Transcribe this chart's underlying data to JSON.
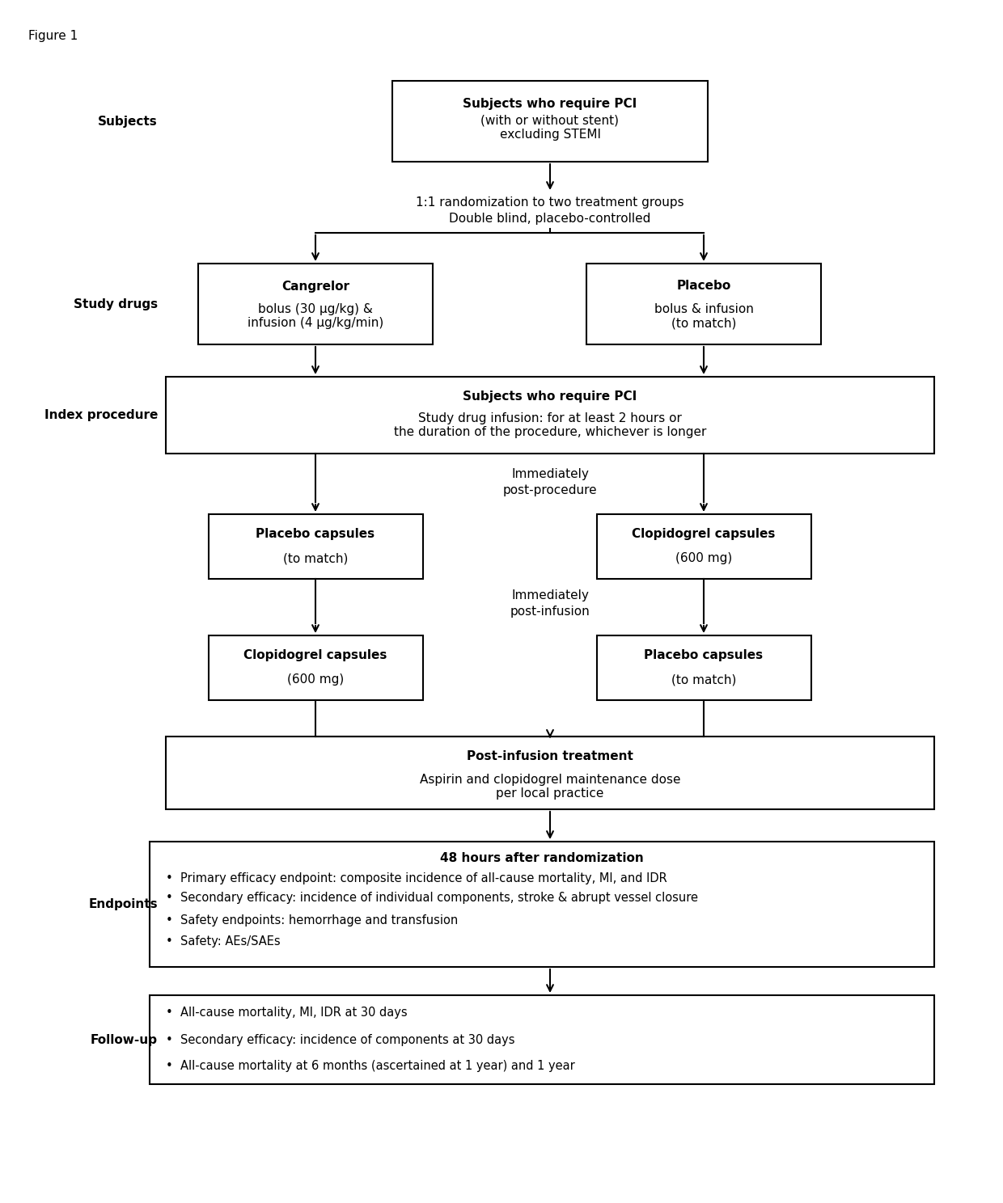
{
  "figure_label": "Figure 1",
  "background_color": "#ffffff",
  "box_edge_color": "#000000",
  "text_color": "#000000",
  "arrow_color": "#000000",
  "font_family": "DejaVu Sans",
  "subjects_label": "Subjects",
  "subjects_box_title": "Subjects who require PCI",
  "subjects_box_body": "(with or without stent)\nexcluding STEMI",
  "randomization_text": "1:1 randomization to two treatment groups\nDouble blind, placebo-controlled",
  "study_drugs_label": "Study drugs",
  "cangrelor_title": "Cangrelor",
  "cangrelor_body": "bolus (30 μg/kg) &\ninfusion (4 μg/kg/min)",
  "placebo_title": "Placebo",
  "placebo_body": "bolus & infusion\n(to match)",
  "index_procedure_label": "Index procedure",
  "index_title": "Subjects who require PCI",
  "index_body": "Study drug infusion: for at least 2 hours or\nthe duration of the procedure, whichever is longer",
  "imm_post_proc": "Immediately\npost-procedure",
  "placebo_caps_left_title": "Placebo capsules",
  "placebo_caps_left_body": "(to match)",
  "clopi_caps_right_title": "Clopidogrel capsules",
  "clopi_caps_right_body": "(600 mg)",
  "imm_post_inf": "Immediately\npost-infusion",
  "clopi_caps_left_title": "Clopidogrel capsules",
  "clopi_caps_left_body": "(600 mg)",
  "placebo_caps_right_title": "Placebo capsules",
  "placebo_caps_right_body": "(to match)",
  "post_inf_title": "Post-infusion treatment",
  "post_inf_body": "Aspirin and clopidogrel maintenance dose\nper local practice",
  "endpoints_label": "Endpoints",
  "endpoints_title": "48 hours after randomization",
  "endpoints_bullets": [
    "Primary efficacy endpoint: composite incidence of all-cause mortality, MI, and IDR",
    "Secondary efficacy: incidence of individual components, stroke & abrupt vessel closure",
    "Safety endpoints: hemorrhage and transfusion",
    "Safety: AEs/SAEs"
  ],
  "followup_label": "Follow-up",
  "followup_bullets": [
    "All-cause mortality, MI, IDR at 30 days",
    "Secondary efficacy: incidence of components at 30 days",
    "All-cause mortality at 6 months (ascertained at 1 year) and 1 year"
  ]
}
